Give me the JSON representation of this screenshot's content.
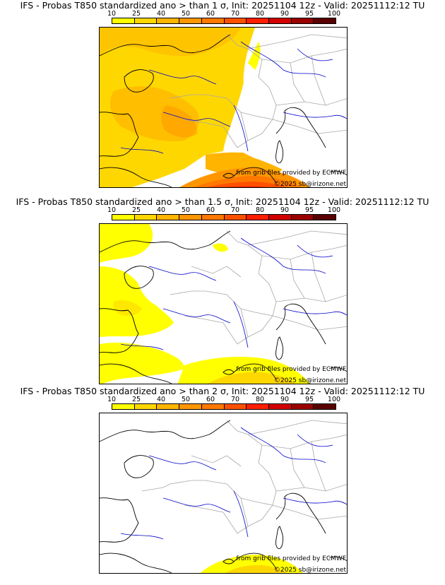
{
  "colors": {
    "scale": [
      "#ffff00",
      "#ffd700",
      "#ffb400",
      "#ff9600",
      "#ff7800",
      "#ff5000",
      "#ff1e00",
      "#d20000",
      "#9b0000",
      "#5a0000"
    ],
    "coast": "#000000",
    "rivers": "#0000cc",
    "borders": "#a8a8a8"
  },
  "colorbar": {
    "labels": [
      "10",
      "25",
      "40",
      "50",
      "60",
      "70",
      "80",
      "90",
      "95",
      "100"
    ]
  },
  "panels": [
    {
      "title": "IFS - Probas T850  standardized ano > than 1 σ, Init: 20251104 12z - Valid: 20251112:12 TU",
      "credit_source": "from grib files provided by ECMWF",
      "credit_copyright": "©2025 sb@irizone.net"
    },
    {
      "title": "IFS - Probas T850  standardized ano > than 1.5 σ, Init: 20251104 12z - Valid: 20251112:12 TU",
      "credit_source": "from grib files provided by ECMWF",
      "credit_copyright": "©2025 sb@irizone.net"
    },
    {
      "title": "IFS - Probas T850  standardized ano > than 2 σ, Init: 20251104 12z - Valid: 20251112:12 TU",
      "credit_source": "from grib files provided by ECMWF",
      "credit_copyright": "©2025 sb@irizone.net"
    }
  ]
}
